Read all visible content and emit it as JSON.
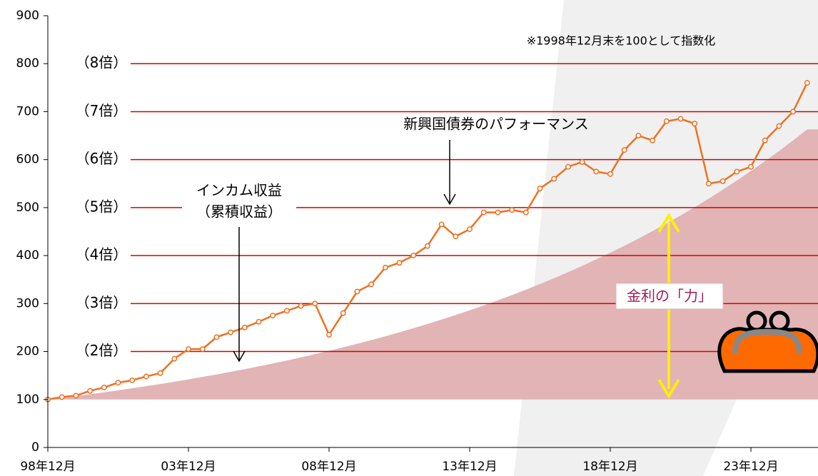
{
  "chart_data": {
    "type": "line",
    "note": "※1998年12月末を100として指数化",
    "categories": [
      "98年12月",
      null,
      null,
      null,
      null,
      null,
      null,
      null,
      null,
      null,
      "03年12月",
      null,
      null,
      null,
      null,
      null,
      null,
      null,
      null,
      null,
      "08年12月",
      null,
      null,
      null,
      null,
      null,
      null,
      null,
      null,
      null,
      "13年12月",
      null,
      null,
      null,
      null,
      null,
      null,
      null,
      null,
      null,
      "18年12月",
      null,
      null,
      null,
      null,
      null,
      null,
      null,
      null,
      null,
      "23年12月",
      null,
      null,
      null,
      null
    ],
    "series": [
      {
        "name": "新興国債券のパフォーマンス",
        "type": "line",
        "color": "#f07020",
        "values": [
          100,
          105,
          108,
          118,
          125,
          135,
          140,
          148,
          155,
          185,
          205,
          205,
          230,
          240,
          250,
          262,
          275,
          285,
          295,
          300,
          235,
          280,
          325,
          340,
          375,
          385,
          400,
          420,
          465,
          440,
          455,
          490,
          490,
          495,
          490,
          540,
          560,
          585,
          595,
          575,
          570,
          620,
          650,
          640,
          680,
          685,
          675,
          550,
          555,
          575,
          585,
          640,
          670,
          700,
          760
        ]
      },
      {
        "name": "インカム収益",
        "type": "area",
        "color": "#e2b4b6",
        "values": [
          100,
          103.6,
          107.3,
          111.1,
          115,
          119.1,
          123.4,
          127.8,
          132.3,
          137,
          141.9,
          147,
          152.2,
          157.6,
          163.2,
          169,
          175.1,
          181.3,
          187.8,
          194.5,
          201.4,
          208.6,
          216,
          223.7,
          231.7,
          240,
          248.6,
          257.4,
          266.6,
          276.1,
          285.8,
          296.1,
          306.6,
          317.6,
          328.9,
          340.6,
          352.8,
          365.4,
          378.4,
          391.9,
          405.9,
          420.3,
          435.3,
          450.9,
          466.9,
          483.6,
          500.8,
          518.7,
          537.2,
          556.3,
          576.2,
          596.7,
          618,
          640.1,
          662.9
        ]
      }
    ],
    "income_label_2": "（累積収益）",
    "power_label": "金利の「力」",
    "ylim": [
      0,
      900
    ],
    "yticks": [
      0,
      100,
      200,
      300,
      400,
      500,
      600,
      700,
      800,
      900
    ],
    "reference_lines": [
      {
        "value": 200,
        "label": "（2倍）"
      },
      {
        "value": 300,
        "label": "（3倍）"
      },
      {
        "value": 400,
        "label": "（4倍）"
      },
      {
        "value": 500,
        "label": "（5倍）"
      },
      {
        "value": 600,
        "label": "（6倍）"
      },
      {
        "value": 700,
        "label": "（7倍）"
      },
      {
        "value": 800,
        "label": "（8倍）"
      }
    ],
    "reference_color": "#d40000"
  }
}
